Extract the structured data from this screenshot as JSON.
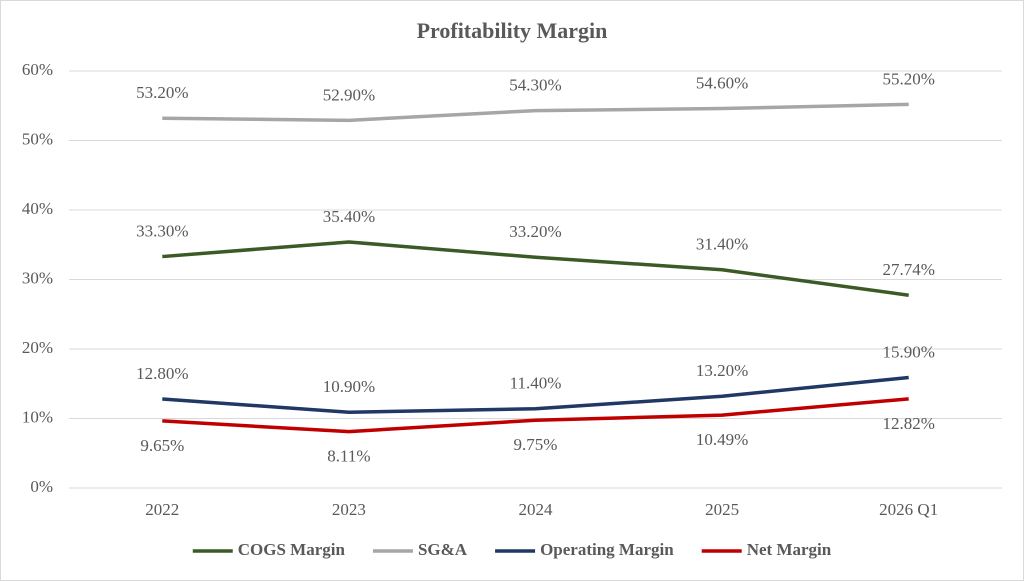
{
  "chart_data": {
    "type": "line",
    "title": "Profitability Margin",
    "categories": [
      "2022",
      "2023",
      "2024",
      "2025",
      "2026 Q1"
    ],
    "series": [
      {
        "name": "COGS Margin",
        "color": "#3b5a26",
        "values": [
          33.3,
          35.4,
          33.2,
          31.4,
          27.74
        ],
        "value_labels": [
          "33.30%",
          "35.40%",
          "33.20%",
          "31.40%",
          "27.74%"
        ]
      },
      {
        "name": "SG&A",
        "color": "#a6a6a6",
        "values": [
          53.2,
          52.9,
          54.3,
          54.6,
          55.2
        ],
        "value_labels": [
          "53.20%",
          "52.90%",
          "54.30%",
          "54.60%",
          "55.20%"
        ]
      },
      {
        "name": "Operating Margin",
        "color": "#1f3864",
        "values": [
          12.8,
          10.9,
          11.4,
          13.2,
          15.9
        ],
        "value_labels": [
          "12.80%",
          "10.90%",
          "11.40%",
          "13.20%",
          "15.90%"
        ]
      },
      {
        "name": "Net Margin",
        "color": "#c00000",
        "values": [
          9.65,
          8.11,
          9.75,
          10.49,
          12.82
        ],
        "value_labels": [
          "9.65%",
          "8.11%",
          "9.75%",
          "10.49%",
          "12.82%"
        ]
      }
    ],
    "ylim": [
      0,
      60
    ],
    "yticks": [
      {
        "value": 0,
        "label": "0%"
      },
      {
        "value": 10,
        "label": "10%"
      },
      {
        "value": 20,
        "label": "20%"
      },
      {
        "value": 30,
        "label": "30%"
      },
      {
        "value": 40,
        "label": "40%"
      },
      {
        "value": 50,
        "label": "50%"
      },
      {
        "value": 60,
        "label": "60%"
      }
    ],
    "grid": true,
    "legend": "bottom"
  }
}
